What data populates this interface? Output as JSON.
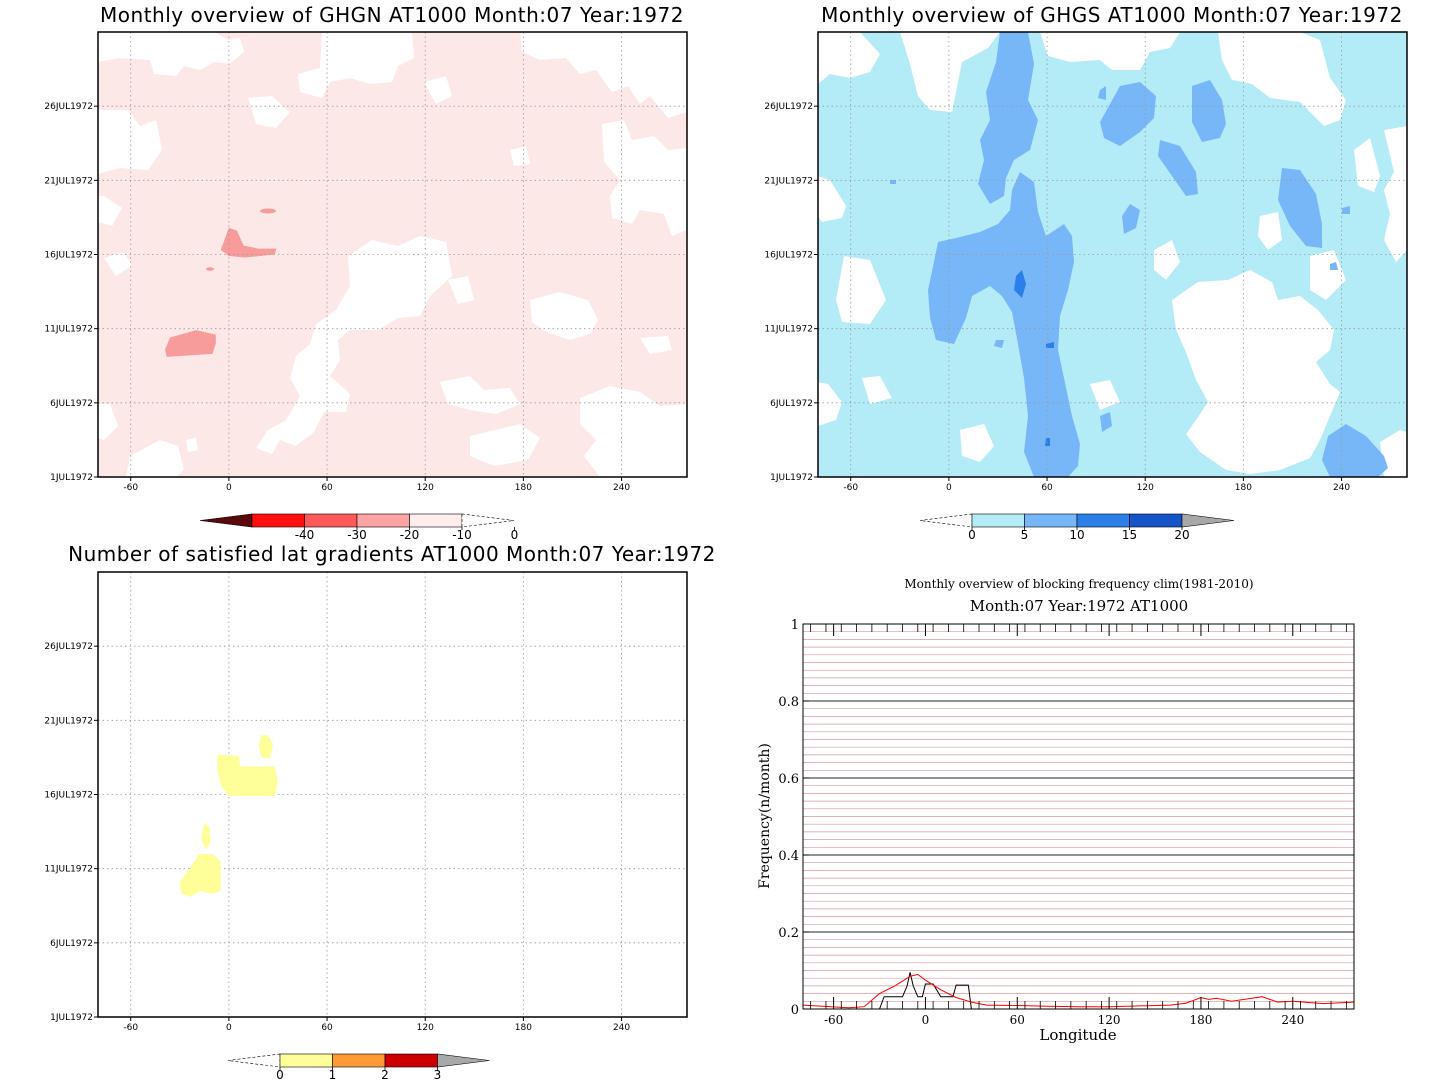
{
  "chart_data": [
    {
      "type": "heatmap",
      "title": "Monthly overview of GHGN AT1000 Month:07 Year:1972",
      "x_ticks": [
        "-60",
        "0",
        "60",
        "120",
        "180",
        "240"
      ],
      "x_tick_values": [
        -60,
        0,
        60,
        120,
        180,
        240
      ],
      "y_ticks": [
        "1JUL1972",
        "6JUL1972",
        "11JUL1972",
        "16JUL1972",
        "21JUL1972",
        "26JUL1972"
      ],
      "y_tick_values": [
        1,
        6,
        11,
        16,
        21,
        26
      ],
      "xlim": [
        -80,
        280
      ],
      "ylim": [
        1,
        31
      ],
      "grid": true,
      "colorbar": {
        "labels": [
          "-40",
          "-30",
          "-20",
          "-10",
          "0"
        ],
        "colors": [
          "#5a0a0a",
          "#ff1010",
          "#ff5a5a",
          "#ffa4a4",
          "#ffecec"
        ],
        "extend_low_color": "#5a0a0a",
        "extend_high_color": "#ffffff"
      },
      "regions": [
        {
          "level": "-10 to 0",
          "color": "#fde8e8",
          "description": "broad fill"
        },
        {
          "level": "-20 to -10",
          "color": "#f79b9b",
          "points": [
            [
              -5,
              16.3
            ],
            [
              0,
              17.8
            ],
            [
              5,
              17.6
            ],
            [
              9,
              16.6
            ],
            [
              18,
              16.4
            ],
            [
              29,
              16.4
            ],
            [
              28,
              16.0
            ],
            [
              10,
              15.8
            ],
            [
              0,
              15.9
            ]
          ]
        },
        {
          "level": "-20 to -10",
          "color": "#f79b9b",
          "points": [
            [
              -38,
              9.1
            ],
            [
              -10,
              9.3
            ],
            [
              -8,
              10.0
            ],
            [
              -8,
              10.6
            ],
            [
              -20,
              10.9
            ],
            [
              -36,
              10.4
            ],
            [
              -39,
              9.6
            ]
          ]
        }
      ]
    },
    {
      "type": "heatmap",
      "title": "Monthly overview of GHGS AT1000 Month:07 Year:1972",
      "x_ticks": [
        "-60",
        "0",
        "60",
        "120",
        "180",
        "240"
      ],
      "x_tick_values": [
        -60,
        0,
        60,
        120,
        180,
        240
      ],
      "y_ticks": [
        "1JUL1972",
        "6JUL1972",
        "11JUL1972",
        "16JUL1972",
        "21JUL1972",
        "26JUL1972"
      ],
      "y_tick_values": [
        1,
        6,
        11,
        16,
        21,
        26
      ],
      "xlim": [
        -80,
        280
      ],
      "ylim": [
        1,
        31
      ],
      "grid": true,
      "colorbar": {
        "labels": [
          "0",
          "5",
          "10",
          "15",
          "20"
        ],
        "colors": [
          "#ffffff",
          "#b3ecf6",
          "#77b6f7",
          "#2a7fe8",
          "#1555c8"
        ],
        "extend_low_color": "#ffffff",
        "extend_high_color": "#a8a8a8"
      },
      "regions": [
        {
          "level": "0 to 5",
          "color": "#b3ecf6",
          "description": "broad fill"
        },
        {
          "level": "5 to 10",
          "color": "#77b6f7",
          "description": "central band near 40-70E"
        },
        {
          "level": "10 to 15",
          "color": "#2a7fe8",
          "description": "small cores near 42E, 16JUL"
        }
      ]
    },
    {
      "type": "heatmap",
      "title": "Number of satisfied lat gradients AT1000 Month:07 Year:1972",
      "x_ticks": [
        "-60",
        "0",
        "60",
        "120",
        "180",
        "240"
      ],
      "x_tick_values": [
        -60,
        0,
        60,
        120,
        180,
        240
      ],
      "y_ticks": [
        "1JUL1972",
        "6JUL1972",
        "11JUL1972",
        "16JUL1972",
        "21JUL1972",
        "26JUL1972"
      ],
      "y_tick_values": [
        1,
        6,
        11,
        16,
        21,
        26
      ],
      "xlim": [
        -80,
        280
      ],
      "ylim": [
        1,
        31
      ],
      "grid": true,
      "colorbar": {
        "labels": [
          "0",
          "1",
          "2",
          "3"
        ],
        "colors": [
          "#ffff99",
          "#ff9933",
          "#cc0000"
        ],
        "extend_low_color": "#ffffff",
        "extend_high_color": "#a8a8a8"
      },
      "regions": [
        {
          "level": "0 to 1",
          "color": "#ffff99",
          "points": [
            [
              20,
              20
            ],
            [
              24,
              20
            ],
            [
              27,
              19.3
            ],
            [
              25,
              18.4
            ],
            [
              20,
              18.5
            ],
            [
              18,
              19.3
            ]
          ]
        },
        {
          "level": "0 to 1",
          "color": "#ffff99",
          "points": [
            [
              -7,
              18.7
            ],
            [
              6,
              18.6
            ],
            [
              7,
              17.9
            ],
            [
              28,
              17.9
            ],
            [
              30,
              16.9
            ],
            [
              28,
              15.9
            ],
            [
              0,
              15.9
            ],
            [
              -5,
              16.6
            ],
            [
              -7,
              17.6
            ]
          ]
        },
        {
          "level": "0 to 1",
          "color": "#ffff99",
          "points": [
            [
              -15,
              14.1
            ],
            [
              -12,
              13.8
            ],
            [
              -11,
              12.8
            ],
            [
              -14,
              12.3
            ],
            [
              -17,
              13.0
            ]
          ]
        },
        {
          "level": "0 to 1",
          "color": "#ffff99",
          "points": [
            [
              -24,
              11.0
            ],
            [
              -18,
              12.0
            ],
            [
              -10,
              12.0
            ],
            [
              -5,
              11.5
            ],
            [
              -5,
              9.5
            ],
            [
              -10,
              9.3
            ],
            [
              -18,
              9.5
            ],
            [
              -23,
              9.1
            ],
            [
              -29,
              9.3
            ],
            [
              -30,
              10.1
            ]
          ]
        }
      ]
    },
    {
      "type": "line",
      "title": "Monthly overview of blocking frequency clim(1981-2010)",
      "subtitle": "Month:07 Year:1972  AT1000",
      "xlabel": "Longitude",
      "ylabel": "Frequency(n/month)",
      "x_ticks": [
        "-60",
        "0",
        "60",
        "120",
        "180",
        "240"
      ],
      "x_tick_values": [
        -60,
        0,
        60,
        120,
        180,
        240
      ],
      "y_ticks": [
        "0",
        "0.2",
        "0.4",
        "0.6",
        "0.8",
        "1"
      ],
      "y_tick_values": [
        0,
        0.2,
        0.4,
        0.6,
        0.8,
        1
      ],
      "xlim": [
        -80,
        280
      ],
      "ylim": [
        0,
        1
      ],
      "grid": true,
      "series": [
        {
          "color": "#000000",
          "x": [
            -80,
            -30,
            -27,
            -20,
            -15,
            -12,
            -10,
            -8,
            -5,
            -2,
            0,
            5,
            10,
            15,
            18,
            20,
            25,
            28,
            30,
            40,
            280
          ],
          "y": [
            0,
            0,
            0.032,
            0.032,
            0.032,
            0.06,
            0.095,
            0.06,
            0.032,
            0.032,
            0.065,
            0.065,
            0.032,
            0.032,
            0.032,
            0.062,
            0.062,
            0.062,
            0,
            0,
            0
          ]
        },
        {
          "color": "#ff0000",
          "x": [
            -80,
            -50,
            -40,
            -30,
            -20,
            -10,
            -5,
            0,
            10,
            20,
            30,
            40,
            60,
            80,
            100,
            120,
            140,
            160,
            170,
            175,
            180,
            185,
            190,
            200,
            210,
            220,
            230,
            240,
            260,
            280
          ],
          "y": [
            0.01,
            0.003,
            0.006,
            0.04,
            0.06,
            0.085,
            0.09,
            0.075,
            0.05,
            0.03,
            0.018,
            0.01,
            0.009,
            0.007,
            0.006,
            0.006,
            0.008,
            0.01,
            0.015,
            0.022,
            0.03,
            0.025,
            0.028,
            0.02,
            0.026,
            0.032,
            0.018,
            0.02,
            0.014,
            0.018
          ]
        }
      ]
    }
  ]
}
